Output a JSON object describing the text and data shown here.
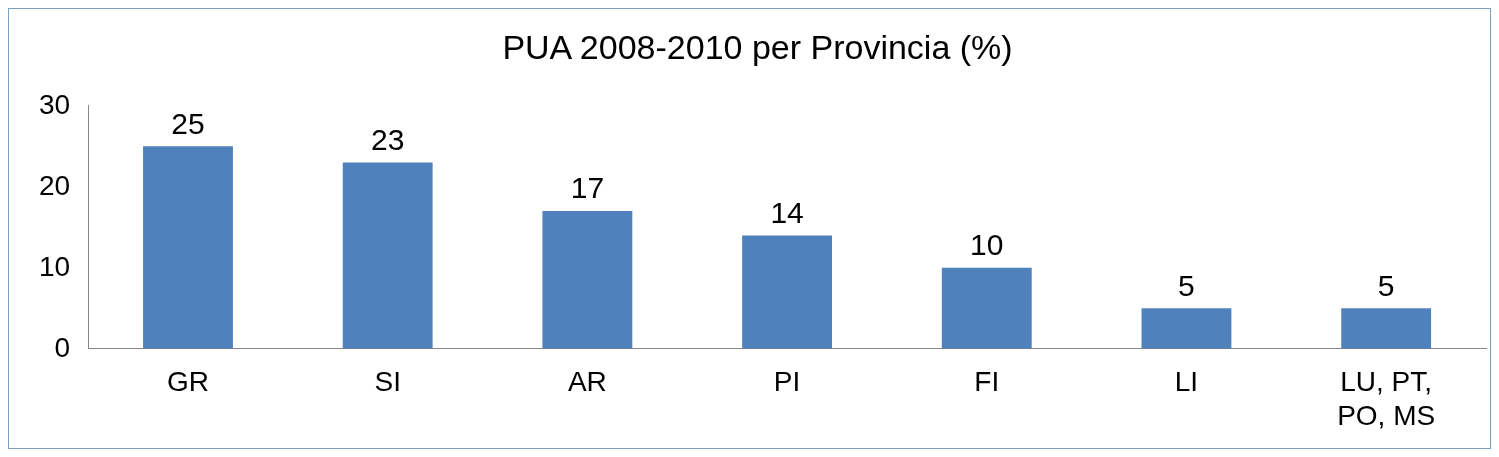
{
  "chart_data": {
    "type": "bar",
    "title": "PUA 2008-2010 per Provincia (%)",
    "categories": [
      "GR",
      "SI",
      "AR",
      "PI",
      "FI",
      "LI",
      "LU, PT, PO, MS"
    ],
    "values": [
      25,
      23,
      17,
      14,
      10,
      5,
      5
    ],
    "color": "#4f81bd",
    "ylim": [
      0,
      30
    ],
    "yticks": [
      0,
      10,
      20,
      30
    ],
    "grid": false,
    "legend": false,
    "data_labels": true
  }
}
